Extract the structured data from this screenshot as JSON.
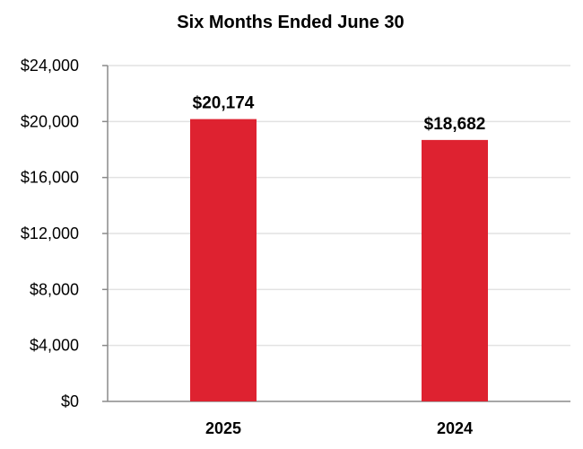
{
  "chart_data": {
    "type": "bar",
    "title": "Six Months Ended June 30",
    "categories": [
      "2025",
      "2024"
    ],
    "values": [
      20174,
      18682
    ],
    "data_labels": [
      "$20,174",
      "$18,682"
    ],
    "y_ticks": [
      "$0",
      "$4,000",
      "$8,000",
      "$12,000",
      "$16,000",
      "$20,000",
      "$24,000"
    ],
    "y_tick_values": [
      0,
      4000,
      8000,
      12000,
      16000,
      20000,
      24000
    ],
    "ylim": [
      0,
      24000
    ],
    "xlabel": "",
    "ylabel": "",
    "grid": true,
    "bar_color": "#de2230"
  }
}
